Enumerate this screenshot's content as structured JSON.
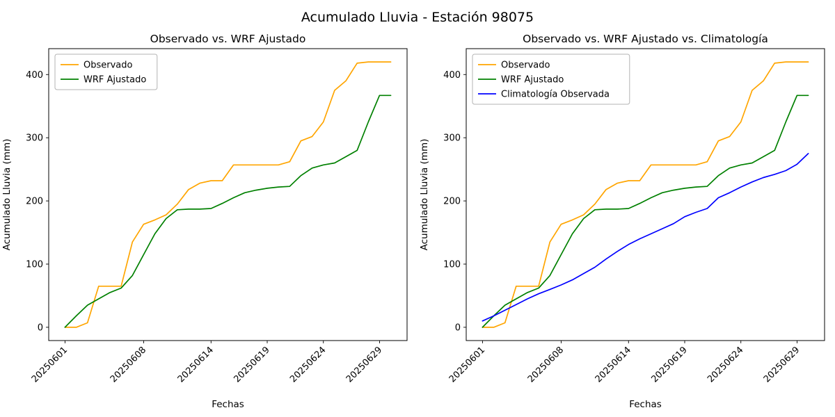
{
  "figure": {
    "title": "Acumulado Lluvia - Estación 98075",
    "background": "#ffffff"
  },
  "chart_data": [
    {
      "type": "line",
      "title": "Observado vs. WRF Ajustado",
      "xlabel": "Fechas",
      "ylabel": "Acumulado Lluvia (mm)",
      "x": [
        "20250601",
        "20250602",
        "20250603",
        "20250604",
        "20250605",
        "20250606",
        "20250607",
        "20250608",
        "20250609",
        "20250610",
        "20250611",
        "20250612",
        "20250613",
        "20250614",
        "20250615",
        "20250616",
        "20250617",
        "20250618",
        "20250619",
        "20250620",
        "20250621",
        "20250622",
        "20250623",
        "20250624",
        "20250625",
        "20250626",
        "20250627",
        "20250628",
        "20250629",
        "20250630"
      ],
      "xtick_labels": [
        "20250601",
        "20250608",
        "20250614",
        "20250619",
        "20250624",
        "20250629"
      ],
      "xtick_indices": [
        0,
        7,
        13,
        18,
        23,
        28
      ],
      "yticks": [
        0,
        100,
        200,
        300,
        400
      ],
      "ylim": [
        -21,
        441
      ],
      "grid": false,
      "legend_position": "upper-left",
      "series": [
        {
          "name": "Observado",
          "color": "#FFA500",
          "values": [
            0,
            0,
            7,
            65,
            65,
            65,
            135,
            163,
            170,
            178,
            195,
            218,
            228,
            232,
            232,
            257,
            257,
            257,
            257,
            257,
            262,
            295,
            302,
            325,
            375,
            390,
            418,
            420,
            420,
            420
          ]
        },
        {
          "name": "WRF Ajustado",
          "color": "#008000",
          "values": [
            0,
            18,
            35,
            45,
            55,
            62,
            82,
            115,
            148,
            172,
            186,
            187,
            187,
            188,
            196,
            205,
            213,
            217,
            220,
            222,
            223,
            240,
            252,
            257,
            260,
            270,
            280,
            325,
            367,
            367
          ]
        }
      ]
    },
    {
      "type": "line",
      "title": "Observado vs. WRF Ajustado vs. Climatología",
      "xlabel": "Fechas",
      "ylabel": "Acumulado Lluvia (mm)",
      "x": [
        "20250601",
        "20250602",
        "20250603",
        "20250604",
        "20250605",
        "20250606",
        "20250607",
        "20250608",
        "20250609",
        "20250610",
        "20250611",
        "20250612",
        "20250613",
        "20250614",
        "20250615",
        "20250616",
        "20250617",
        "20250618",
        "20250619",
        "20250620",
        "20250621",
        "20250622",
        "20250623",
        "20250624",
        "20250625",
        "20250626",
        "20250627",
        "20250628",
        "20250629",
        "20250630"
      ],
      "xtick_labels": [
        "20250601",
        "20250608",
        "20250614",
        "20250619",
        "20250624",
        "20250629"
      ],
      "xtick_indices": [
        0,
        7,
        13,
        18,
        23,
        28
      ],
      "yticks": [
        0,
        100,
        200,
        300,
        400
      ],
      "ylim": [
        -21,
        441
      ],
      "grid": false,
      "legend_position": "upper-left",
      "series": [
        {
          "name": "Observado",
          "color": "#FFA500",
          "values": [
            0,
            0,
            7,
            65,
            65,
            65,
            135,
            163,
            170,
            178,
            195,
            218,
            228,
            232,
            232,
            257,
            257,
            257,
            257,
            257,
            262,
            295,
            302,
            325,
            375,
            390,
            418,
            420,
            420,
            420
          ]
        },
        {
          "name": "WRF Ajustado",
          "color": "#008000",
          "values": [
            0,
            18,
            35,
            45,
            55,
            62,
            82,
            115,
            148,
            172,
            186,
            187,
            187,
            188,
            196,
            205,
            213,
            217,
            220,
            222,
            223,
            240,
            252,
            257,
            260,
            270,
            280,
            325,
            367,
            367
          ]
        },
        {
          "name": "Climatología Observada",
          "color": "#0000FF",
          "values": [
            10,
            18,
            27,
            36,
            45,
            53,
            60,
            67,
            75,
            85,
            95,
            108,
            120,
            131,
            140,
            148,
            156,
            164,
            175,
            182,
            188,
            205,
            213,
            222,
            230,
            237,
            242,
            248,
            258,
            275
          ]
        }
      ]
    }
  ]
}
